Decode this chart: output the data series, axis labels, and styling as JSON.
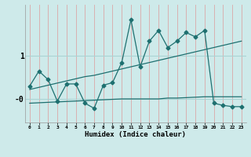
{
  "xlabel": "Humidex (Indice chaleur)",
  "x": [
    0,
    1,
    2,
    3,
    4,
    5,
    6,
    7,
    8,
    9,
    10,
    11,
    12,
    13,
    14,
    15,
    16,
    17,
    18,
    19,
    20,
    21,
    22,
    23
  ],
  "y_jagged": [
    0.3,
    0.65,
    0.45,
    -0.05,
    0.35,
    0.35,
    -0.1,
    -0.22,
    0.32,
    0.38,
    0.85,
    1.85,
    0.75,
    1.35,
    1.6,
    1.2,
    1.35,
    1.55,
    1.45,
    1.6,
    -0.1,
    -0.15,
    -0.18,
    -0.18
  ],
  "y_line1": [
    0.22,
    0.27,
    0.32,
    0.37,
    0.42,
    0.47,
    0.52,
    0.55,
    0.6,
    0.65,
    0.7,
    0.75,
    0.8,
    0.85,
    0.9,
    0.95,
    1.0,
    1.05,
    1.1,
    1.15,
    1.2,
    1.25,
    1.3,
    1.35
  ],
  "y_line2": [
    -0.1,
    -0.09,
    -0.08,
    -0.07,
    -0.06,
    -0.05,
    -0.04,
    -0.03,
    -0.02,
    -0.01,
    0.0,
    0.0,
    0.0,
    0.0,
    0.0,
    0.02,
    0.02,
    0.03,
    0.04,
    0.05,
    0.05,
    0.05,
    0.05,
    0.05
  ],
  "bg_color": "#ceeaea",
  "line_color": "#1e7070",
  "grid_color_v": "#dba8a8",
  "grid_color_h": "#aad4d4",
  "ylim": [
    -0.55,
    2.2
  ],
  "xlim": [
    -0.5,
    23.5
  ],
  "ytick_vals": [
    1,
    0
  ],
  "ytick_labels": [
    "1",
    "-0"
  ]
}
